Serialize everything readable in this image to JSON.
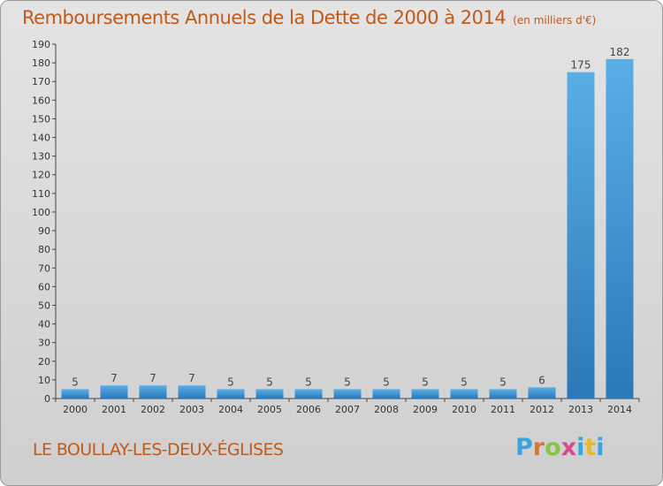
{
  "title": "Remboursements Annuels de la Dette de 2000 à 2014",
  "unit": "(en milliers d'€)",
  "commune": "LE BOULLAY-LES-DEUX-ÉGLISES",
  "logo": {
    "text": "Proxiti",
    "colors": [
      "#3aa4dc",
      "#e0742a",
      "#8bc34a",
      "#d84a8a",
      "#3aa4dc",
      "#e8b82c",
      "#3aa4dc"
    ]
  },
  "colors": {
    "title": "#c05a1b",
    "bar_top": "#5aaee6",
    "bar_bottom": "#2b78b8",
    "axis": "#444444"
  },
  "chart_data": {
    "type": "bar",
    "title": "Remboursements Annuels de la Dette de 2000 à 2014",
    "subtitle": "(en milliers d'€)",
    "xlabel": "",
    "ylabel": "",
    "categories": [
      "2000",
      "2001",
      "2002",
      "2003",
      "2004",
      "2005",
      "2006",
      "2007",
      "2008",
      "2009",
      "2010",
      "2011",
      "2012",
      "2013",
      "2014"
    ],
    "values": [
      5,
      7,
      7,
      7,
      5,
      5,
      5,
      5,
      5,
      5,
      5,
      5,
      6,
      175,
      182
    ],
    "ylim": [
      0,
      190
    ],
    "yticks": [
      0,
      10,
      20,
      30,
      40,
      50,
      60,
      70,
      80,
      90,
      100,
      110,
      120,
      130,
      140,
      150,
      160,
      170,
      180,
      190
    ],
    "grid": false,
    "data_labels": true
  }
}
